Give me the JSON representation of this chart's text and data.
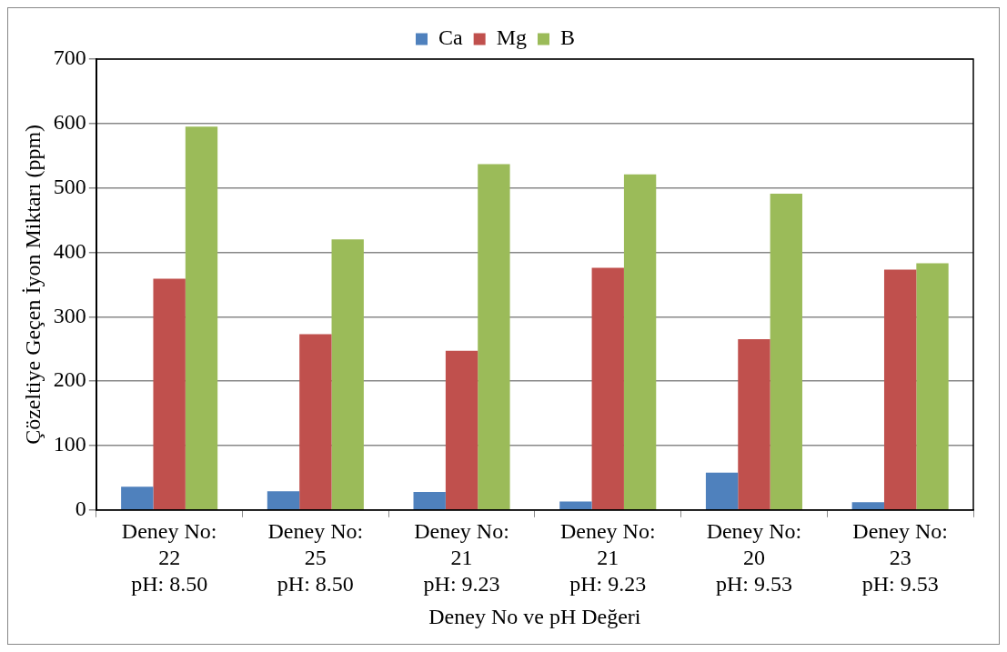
{
  "chart_data": {
    "type": "bar",
    "xlabel": "Deney No ve pH Değeri",
    "ylabel": "Çözeltiye Geçen İyon Miktarı (ppm)",
    "categories": [
      "Deney No:\n22\npH: 8.50",
      "Deney No:\n25\npH: 8.50",
      "Deney No:\n21\npH: 9.23",
      "Deney No:\n21\npH: 9.23",
      "Deney No:\n20\npH: 9.53",
      "Deney No:\n23\npH: 9.53"
    ],
    "series": [
      {
        "name": "Ca",
        "color": "#4f81bd",
        "values": [
          36,
          29,
          28,
          13,
          58,
          12
        ]
      },
      {
        "name": "Mg",
        "color": "#c0504d",
        "values": [
          359,
          273,
          247,
          376,
          265,
          373
        ]
      },
      {
        "name": "B",
        "color": "#9bbb59",
        "values": [
          595,
          420,
          537,
          521,
          491,
          383
        ]
      }
    ],
    "ylim": [
      0,
      700
    ],
    "yticks": [
      0,
      100,
      200,
      300,
      400,
      500,
      600,
      700
    ],
    "grid": "y",
    "legend": "top"
  }
}
